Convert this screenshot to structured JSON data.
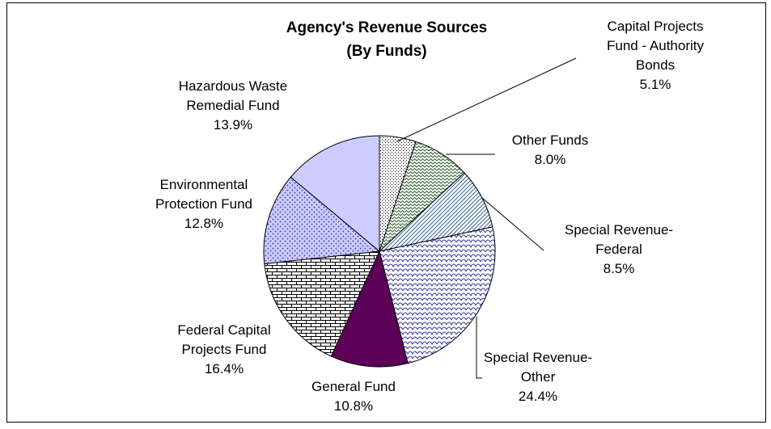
{
  "chart_data": {
    "type": "pie",
    "title_lines": [
      "Agency's Revenue Sources",
      "(By Funds)"
    ],
    "slices": [
      {
        "name": "Capital Projects Fund - Authority Bonds",
        "label_lines": [
          "Capital Projects",
          "Fund - Authority",
          "Bonds"
        ],
        "pct_label": "5.1%",
        "value": 5.1,
        "fill": "dots-dense"
      },
      {
        "name": "Other Funds",
        "label_lines": [
          "Other Funds"
        ],
        "pct_label": "8.0%",
        "value": 8.0,
        "fill": "zigzag"
      },
      {
        "name": "Special Revenue-Federal",
        "label_lines": [
          "Special Revenue-",
          "Federal"
        ],
        "pct_label": "8.5%",
        "value": 8.5,
        "fill": "diagonal-blue"
      },
      {
        "name": "Special Revenue-Other",
        "label_lines": [
          "Special Revenue-",
          "Other"
        ],
        "pct_label": "24.4%",
        "value": 24.4,
        "fill": "scales"
      },
      {
        "name": "General Fund",
        "label_lines": [
          "General Fund"
        ],
        "pct_label": "10.8%",
        "value": 10.8,
        "fill": "solid-purple"
      },
      {
        "name": "Federal Capital Projects Fund",
        "label_lines": [
          "Federal Capital",
          "Projects Fund"
        ],
        "pct_label": "16.4%",
        "value": 16.4,
        "fill": "brick"
      },
      {
        "name": "Environmental Protection Fund",
        "label_lines": [
          "Environmental",
          "Protection Fund"
        ],
        "pct_label": "12.8%",
        "value": 12.8,
        "fill": "dots-lavender"
      },
      {
        "name": "Hazardous Waste Remedial Fund",
        "label_lines": [
          "Hazardous Waste",
          "Remedial Fund"
        ],
        "pct_label": "13.9%",
        "value": 13.9,
        "fill": "solid-lavender"
      }
    ],
    "colors": {
      "purple": "#5c0058",
      "lavender": "#ccccff",
      "blue": "#336699",
      "green": "#336633"
    },
    "legend": "none",
    "start_angle": "12 o'clock",
    "direction": "clockwise"
  }
}
